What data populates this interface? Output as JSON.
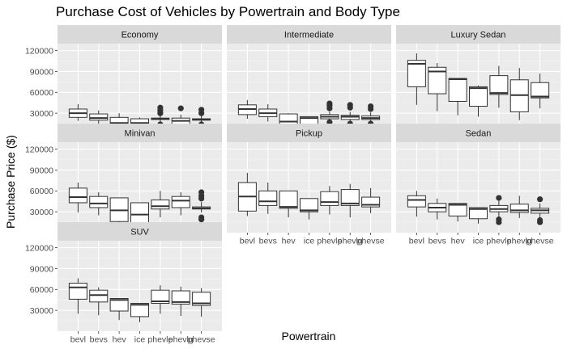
{
  "chart_data": {
    "type": "boxplot",
    "title": "Purchase Cost of Vehicles by Powertrain and Body Type",
    "xlabel": "Powertrain",
    "ylabel": "Purchase Price ($)",
    "facet_layout": "wrap-3-columns",
    "y_ticks": [
      30000,
      60000,
      90000,
      120000
    ],
    "y_tick_labels": [
      "30000",
      "60000",
      "90000",
      "120000"
    ],
    "ylim": [
      0,
      130000
    ],
    "categories": [
      "bevl",
      "bevs",
      "hev",
      "ice",
      "phevle",
      "phevlg",
      "phevse"
    ],
    "x_tick_labels": [
      "bevl",
      "bevs",
      "hev",
      "ice",
      "phevle",
      "phevlg",
      "phevse"
    ],
    "grid": true,
    "panel_background": "#ebebeb",
    "strip_background": "#d9d9d9",
    "facets": [
      {
        "name": "Economy",
        "boxes": [
          {
            "min": 19000,
            "q1": 24000,
            "median": 30000,
            "q3": 36000,
            "max": 43000,
            "outliers": []
          },
          {
            "min": 15000,
            "q1": 20000,
            "median": 23000,
            "q3": 29000,
            "max": 34000,
            "outliers": []
          },
          {
            "min": 5000,
            "q1": 9000,
            "median": 16000,
            "q3": 24000,
            "max": 30000,
            "outliers": []
          },
          {
            "min": 7000,
            "q1": 10000,
            "median": 16000,
            "q3": 22000,
            "max": 24000,
            "outliers": []
          },
          {
            "min": 16000,
            "q1": 21000,
            "median": 22000,
            "q3": 23000,
            "max": 28000,
            "outliers": [
              12000,
              14000,
              30000,
              34000,
              38000
            ]
          },
          {
            "min": 11000,
            "q1": 13000,
            "median": 19000,
            "q3": 23000,
            "max": 28000,
            "outliers": [
              37000
            ]
          },
          {
            "min": 16000,
            "q1": 20000,
            "median": 21000,
            "q3": 22000,
            "max": 27000,
            "outliers": [
              12000,
              14000,
              30000,
              35000
            ]
          }
        ]
      },
      {
        "name": "Intermediate",
        "boxes": [
          {
            "min": 22000,
            "q1": 28000,
            "median": 36000,
            "q3": 42000,
            "max": 49000,
            "outliers": []
          },
          {
            "min": 18000,
            "q1": 25000,
            "median": 30000,
            "q3": 36000,
            "max": 43000,
            "outliers": []
          },
          {
            "min": 10000,
            "q1": 14000,
            "median": 18000,
            "q3": 29000,
            "max": 30000,
            "outliers": []
          },
          {
            "min": 10000,
            "q1": 13000,
            "median": 23000,
            "q3": 25000,
            "max": 25000,
            "outliers": []
          },
          {
            "min": 19000,
            "q1": 22000,
            "median": 25000,
            "q3": 28000,
            "max": 32000,
            "outliers": [
              13000,
              17000,
              37000,
              41000,
              44000
            ]
          },
          {
            "min": 19000,
            "q1": 21000,
            "median": 25000,
            "q3": 27000,
            "max": 32000,
            "outliers": [
              13000,
              15000,
              38000,
              42000
            ]
          },
          {
            "min": 18000,
            "q1": 21000,
            "median": 23000,
            "q3": 26000,
            "max": 31000,
            "outliers": [
              12000,
              15000,
              36000,
              40000
            ]
          }
        ]
      },
      {
        "name": "Luxury Sedan",
        "boxes": [
          {
            "min": 42000,
            "q1": 68000,
            "median": 101000,
            "q3": 106000,
            "max": 116000,
            "outliers": []
          },
          {
            "min": 33000,
            "q1": 58000,
            "median": 90000,
            "q3": 96000,
            "max": 102000,
            "outliers": []
          },
          {
            "min": 27000,
            "q1": 47000,
            "median": 79000,
            "q3": 80000,
            "max": 80000,
            "outliers": []
          },
          {
            "min": 25000,
            "q1": 40000,
            "median": 66000,
            "q3": 68000,
            "max": 70000,
            "outliers": []
          },
          {
            "min": 38000,
            "q1": 57000,
            "median": 59000,
            "q3": 84000,
            "max": 98000,
            "outliers": []
          },
          {
            "min": 20000,
            "q1": 32000,
            "median": 56000,
            "q3": 78000,
            "max": 95000,
            "outliers": []
          },
          {
            "min": 37000,
            "q1": 52000,
            "median": 54000,
            "q3": 74000,
            "max": 87000,
            "outliers": []
          }
        ]
      },
      {
        "name": "Minivan",
        "boxes": [
          {
            "min": 29000,
            "q1": 43000,
            "median": 51000,
            "q3": 64000,
            "max": 72000,
            "outliers": []
          },
          {
            "min": 25000,
            "q1": 36000,
            "median": 42000,
            "q3": 52000,
            "max": 58000,
            "outliers": []
          },
          {
            "min": 15000,
            "q1": 16000,
            "median": 32000,
            "q3": 50000,
            "max": 50000,
            "outliers": []
          },
          {
            "min": 8000,
            "q1": 12000,
            "median": 26000,
            "q3": 43000,
            "max": 43000,
            "outliers": []
          },
          {
            "min": 22000,
            "q1": 34000,
            "median": 38000,
            "q3": 47000,
            "max": 60000,
            "outliers": []
          },
          {
            "min": 25000,
            "q1": 36000,
            "median": 46000,
            "q3": 52000,
            "max": 58000,
            "outliers": []
          },
          {
            "min": 29000,
            "q1": 34000,
            "median": 35000,
            "q3": 37000,
            "max": 44000,
            "outliers": [
              19000,
              22000,
              49000,
              53000,
              58000
            ]
          }
        ]
      },
      {
        "name": "Pickup",
        "boxes": [
          {
            "min": 24000,
            "q1": 31000,
            "median": 52000,
            "q3": 72000,
            "max": 86000,
            "outliers": []
          },
          {
            "min": 27000,
            "q1": 39000,
            "median": 45000,
            "q3": 60000,
            "max": 72000,
            "outliers": []
          },
          {
            "min": 22000,
            "q1": 35000,
            "median": 37000,
            "q3": 60000,
            "max": 60000,
            "outliers": []
          },
          {
            "min": 19000,
            "q1": 30000,
            "median": 32000,
            "q3": 49000,
            "max": 49000,
            "outliers": []
          },
          {
            "min": 26000,
            "q1": 39000,
            "median": 44000,
            "q3": 59000,
            "max": 67000,
            "outliers": []
          },
          {
            "min": 22000,
            "q1": 39000,
            "median": 42000,
            "q3": 62000,
            "max": 70000,
            "outliers": []
          },
          {
            "min": 28000,
            "q1": 37000,
            "median": 40000,
            "q3": 51000,
            "max": 64000,
            "outliers": []
          }
        ]
      },
      {
        "name": "Sedan",
        "boxes": [
          {
            "min": 23000,
            "q1": 37000,
            "median": 47000,
            "q3": 53000,
            "max": 60000,
            "outliers": []
          },
          {
            "min": 19000,
            "q1": 30000,
            "median": 36000,
            "q3": 42000,
            "max": 49000,
            "outliers": []
          },
          {
            "min": 16000,
            "q1": 24000,
            "median": 40000,
            "q3": 42000,
            "max": 42000,
            "outliers": []
          },
          {
            "min": 13000,
            "q1": 20000,
            "median": 34000,
            "q3": 36000,
            "max": 36000,
            "outliers": []
          },
          {
            "min": 22000,
            "q1": 30000,
            "median": 34000,
            "q3": 39000,
            "max": 46000,
            "outliers": [
              15000,
              19000,
              50000
            ]
          },
          {
            "min": 21000,
            "q1": 29000,
            "median": 32000,
            "q3": 41000,
            "max": 53000,
            "outliers": []
          },
          {
            "min": 22000,
            "q1": 28000,
            "median": 32000,
            "q3": 35000,
            "max": 42000,
            "outliers": [
              15000,
              18000,
              48000
            ]
          }
        ]
      },
      {
        "name": "SUV",
        "boxes": [
          {
            "min": 25000,
            "q1": 46000,
            "median": 63000,
            "q3": 69000,
            "max": 76000,
            "outliers": []
          },
          {
            "min": 23000,
            "q1": 42000,
            "median": 52000,
            "q3": 59000,
            "max": 63000,
            "outliers": []
          },
          {
            "min": 16000,
            "q1": 29000,
            "median": 45000,
            "q3": 47000,
            "max": 47000,
            "outliers": []
          },
          {
            "min": 13000,
            "q1": 21000,
            "median": 38000,
            "q3": 40000,
            "max": 40000,
            "outliers": []
          },
          {
            "min": 25000,
            "q1": 40000,
            "median": 43000,
            "q3": 59000,
            "max": 66000,
            "outliers": []
          },
          {
            "min": 22000,
            "q1": 39000,
            "median": 42000,
            "q3": 58000,
            "max": 64000,
            "outliers": []
          },
          {
            "min": 21000,
            "q1": 37000,
            "median": 40000,
            "q3": 56000,
            "max": 62000,
            "outliers": []
          }
        ]
      }
    ]
  }
}
